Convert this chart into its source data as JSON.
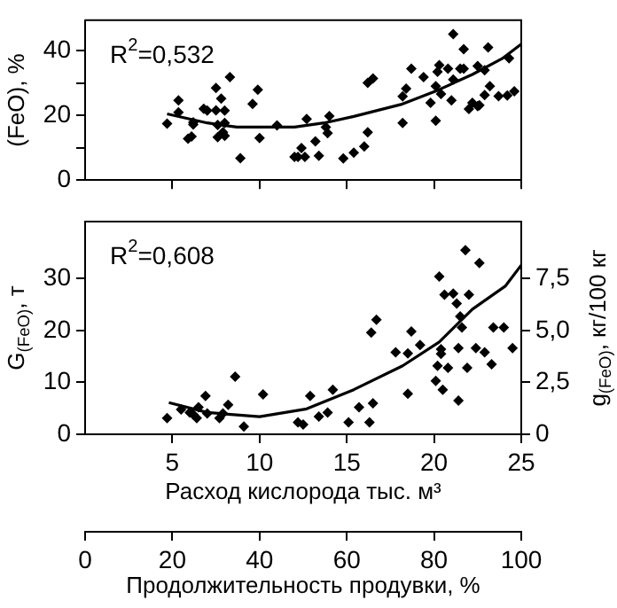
{
  "chart_data": [
    {
      "type": "scatter",
      "ylabel": "(FeO), %",
      "annotations": [
        "R$^{2}$=0,532"
      ],
      "xlim": [
        0,
        25
      ],
      "xticks": [
        {
          "value": 5,
          "label": null
        },
        {
          "value": 10,
          "label": null
        },
        {
          "value": 15,
          "label": null
        },
        {
          "value": 20,
          "label": null
        },
        {
          "value": 25,
          "label": null
        }
      ],
      "ylim": [
        0,
        49.5
      ],
      "yticks": [
        0,
        {
          "value": 10,
          "label": null
        },
        20,
        {
          "value": 30,
          "label": null
        },
        40
      ],
      "tick_labels": "y",
      "grid": false,
      "legend": false,
      "series": [
        {
          "marker": "diamond",
          "color": "#000000",
          "x": [
            4.7,
            5.35,
            5.35,
            5.9,
            6.1,
            6.2,
            6.2,
            6.8,
            7.0,
            7.5,
            7.5,
            7.6,
            7.6,
            7.8,
            7.9,
            8.0,
            8.0,
            8.0,
            8.3,
            8.9,
            9.6,
            9.9,
            10.0,
            11.0,
            12.0,
            12.2,
            12.4,
            12.6,
            12.7,
            13.2,
            13.4,
            13.8,
            13.9,
            14.0,
            14.8,
            15.4,
            16.0,
            16.2,
            16.2,
            16.5,
            18.2,
            18.2,
            18.4,
            18.7,
            19.4,
            19.8,
            20.1,
            20.1,
            20.2,
            20.3,
            20.4,
            20.8,
            21.1,
            21.1,
            21.0,
            21.5,
            21.7,
            21.7,
            22.0,
            22.2,
            22.5,
            22.5,
            22.6,
            22.9,
            22.9,
            23.1,
            23.2,
            23.7,
            24.2,
            24.3,
            24.6
          ],
          "values": [
            17.5,
            24.7,
            21,
            12.8,
            13.5,
            17.2,
            17.9,
            22.1,
            21.5,
            21.6,
            28.5,
            17.1,
            13.3,
            25.2,
            14.8,
            21.5,
            17.7,
            13.7,
            31.9,
            6.8,
            23.6,
            28,
            13,
            16.9,
            7.2,
            7.2,
            9.9,
            7.2,
            18.9,
            12,
            7.5,
            16.4,
            14.5,
            19.8,
            6.7,
            8.5,
            10.4,
            14.8,
            30.1,
            31.5,
            17.7,
            25.9,
            28.3,
            34.5,
            31.9,
            23.9,
            18.4,
            29.1,
            33.5,
            35.6,
            26.7,
            34.5,
            45.2,
            31.1,
            24.7,
            34.5,
            40.5,
            34.5,
            22,
            23.9,
            35.3,
            22.9,
            23.2,
            26.3,
            34,
            41.1,
            29.1,
            26,
            26.2,
            37.7,
            27.5
          ]
        },
        {
          "type": "line",
          "marker": "none",
          "line_style": "solid",
          "color": "#000000",
          "x": [
            4.7,
            7.0,
            8.7,
            12.0,
            13.7,
            15.4,
            18.1,
            20.2,
            22.2,
            23.9,
            25.0
          ],
          "values": [
            20.5,
            17.7,
            16.4,
            16.4,
            17.7,
            19.7,
            23.4,
            27.8,
            32.7,
            37.6,
            42.1
          ]
        }
      ]
    },
    {
      "type": "scatter",
      "ylabel": "G$_{(FeO)}$, т",
      "y2label": "g$_{(FeO)}$, кг/100 кг",
      "xlabel": "Расход кислорода тыс. м³",
      "x2label": "Продолжительность продувки, %",
      "annotations": [
        "R$^{2}$=0,608"
      ],
      "xlim": [
        0,
        25
      ],
      "xticks": [
        5,
        10,
        15,
        20,
        25
      ],
      "ylim": [
        0,
        41
      ],
      "yticks": [
        0,
        10,
        20,
        30
      ],
      "y2lim": [
        0,
        10.25
      ],
      "y2ticks": [
        0,
        {
          "value": 2.5,
          "label": "2,5"
        },
        {
          "value": 5,
          "label": "5,0"
        },
        {
          "value": 7.5,
          "label": "7,5"
        }
      ],
      "x2lim": [
        0,
        100
      ],
      "x2ticks": [
        0,
        20,
        40,
        60,
        80,
        100
      ],
      "grid": false,
      "legend": false,
      "series": [
        {
          "marker": "diamond",
          "color": "#000000",
          "x": [
            4.7,
            5.5,
            6.0,
            6.2,
            6.4,
            6.5,
            6.9,
            7.0,
            7.7,
            7.9,
            8.2,
            8.6,
            9.1,
            10.2,
            12.2,
            12.5,
            12.9,
            13.4,
            13.9,
            14.2,
            15.1,
            15.7,
            16.3,
            16.5,
            16.4,
            16.7,
            17.8,
            18.5,
            18.5,
            18.7,
            19.2,
            20.1,
            20.2,
            20.3,
            20.4,
            20.4,
            20.5,
            20.6,
            20.8,
            21.1,
            21.3,
            21.4,
            21.4,
            21.5,
            21.6,
            21.8,
            21.9,
            22.0,
            22.4,
            22.6,
            22.9,
            23.3,
            23.4,
            24.0,
            24.5
          ],
          "values": [
            3.1,
            4.8,
            4.2,
            3.8,
            3.1,
            5.2,
            7.4,
            4.0,
            3.1,
            4.0,
            5.7,
            11.1,
            1.5,
            7.7,
            2.3,
            1.9,
            7.4,
            3.4,
            4.2,
            8.6,
            2.3,
            5.2,
            2.3,
            6.0,
            19.6,
            22.1,
            15.8,
            15.6,
            7.8,
            19.8,
            17.2,
            10.3,
            13.2,
            30.4,
            16.4,
            15.5,
            8.6,
            26.9,
            12.8,
            27.1,
            25.2,
            16.6,
            6.5,
            22.7,
            20.6,
            35.5,
            12.8,
            26.9,
            16.6,
            33.0,
            15.8,
            13.5,
            20.6,
            20.6,
            16.6
          ]
        },
        {
          "type": "line",
          "marker": "none",
          "line_style": "solid",
          "color": "#000000",
          "x": [
            4.8,
            7.0,
            10.0,
            12.7,
            15.4,
            18.2,
            20.3,
            22.2,
            24.1,
            25.0
          ],
          "values": [
            6.1,
            4.2,
            3.4,
            4.9,
            8.6,
            13.2,
            17.8,
            24.1,
            28.6,
            32.6
          ]
        }
      ]
    }
  ]
}
